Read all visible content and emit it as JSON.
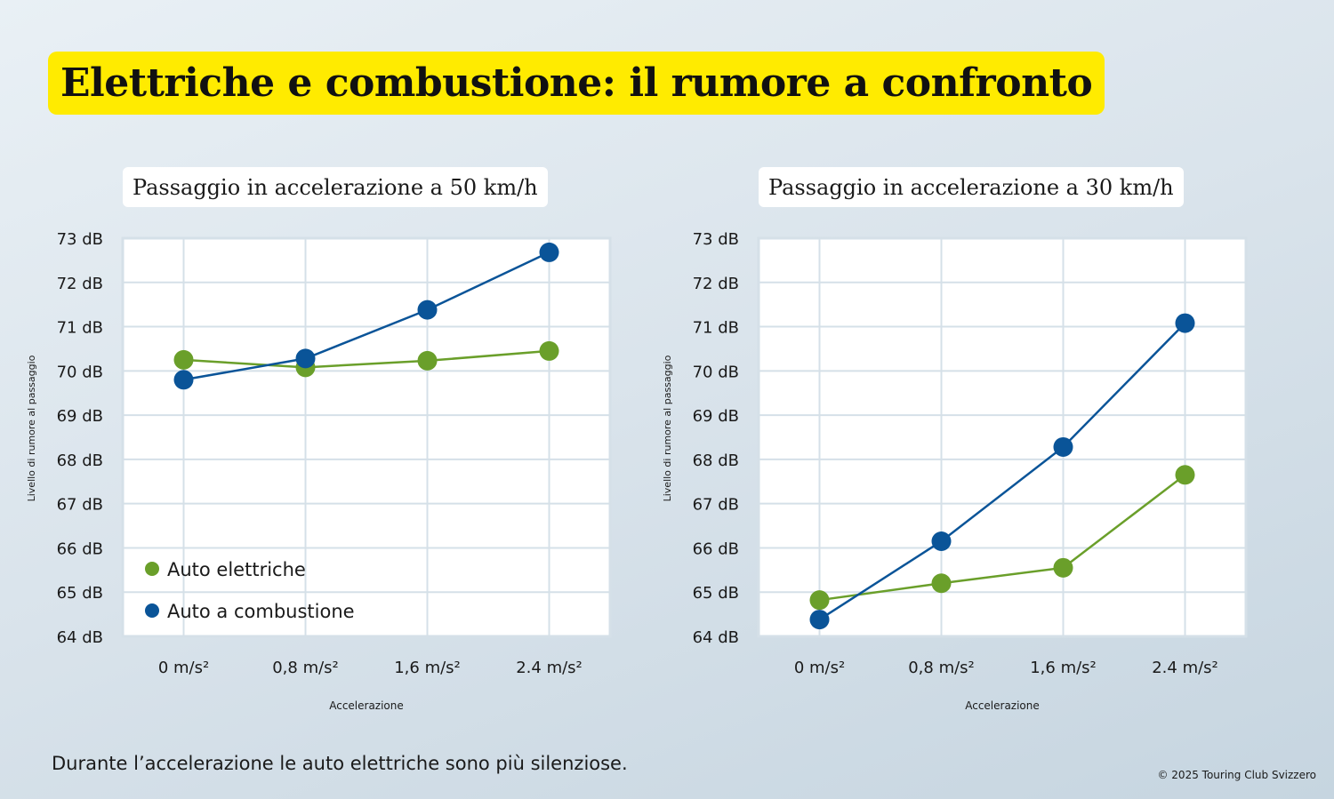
{
  "title": "Elettriche e combustione: il rumore a confronto",
  "chart_data": [
    {
      "type": "line",
      "title": "Passaggio in accelerazione a 50 km/h",
      "xlabel": "Accelerazione",
      "ylabel": "Livello di rumore al passaggio",
      "categories": [
        "0 m/s²",
        "0,8 m/s²",
        "1,6 m/s²",
        "2.4 m/s²"
      ],
      "ylim": [
        64,
        73
      ],
      "yticks": [
        "64 dB",
        "65 dB",
        "66 dB",
        "67 dB",
        "68 dB",
        "69 dB",
        "70 dB",
        "71 dB",
        "72 dB",
        "73 dB"
      ],
      "grid": true,
      "legend_position": "bottom-left",
      "series": [
        {
          "name": "Auto elettriche",
          "color": "#6a9f2a",
          "values": [
            70.25,
            70.08,
            70.23,
            70.45
          ]
        },
        {
          "name": "Auto a combustione",
          "color": "#0a5498",
          "values": [
            69.8,
            70.28,
            71.38,
            72.68
          ]
        }
      ]
    },
    {
      "type": "line",
      "title": "Passaggio in accelerazione a 30 km/h",
      "xlabel": "Accelerazione",
      "ylabel": "Livello di rumore al passaggio",
      "categories": [
        "0 m/s²",
        "0,8 m/s²",
        "1,6 m/s²",
        "2.4 m/s²"
      ],
      "ylim": [
        64,
        73
      ],
      "yticks": [
        "64 dB",
        "65 dB",
        "66 dB",
        "67 dB",
        "68 dB",
        "69 dB",
        "70 dB",
        "71 dB",
        "72 dB",
        "73 dB"
      ],
      "grid": true,
      "series": [
        {
          "name": "Auto elettriche",
          "color": "#6a9f2a",
          "values": [
            64.82,
            65.2,
            65.55,
            67.65
          ]
        },
        {
          "name": "Auto a combustione",
          "color": "#0a5498",
          "values": [
            64.38,
            66.15,
            68.28,
            71.08
          ]
        }
      ]
    }
  ],
  "footer": {
    "note": "Durante l’accelerazione le auto elettriche sono più silenziose.",
    "copyright": "© 2025 Touring Club Svizzero"
  }
}
